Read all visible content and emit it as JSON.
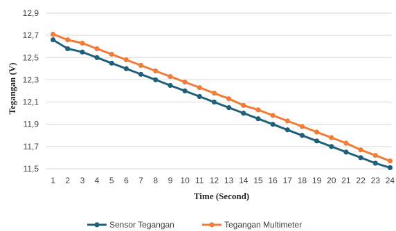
{
  "chart_data": {
    "type": "line",
    "xlabel": "Time (Second)",
    "ylabel": "Tegangan (V)",
    "ylim": [
      11.5,
      12.9
    ],
    "yticks": [
      "11,5",
      "11,7",
      "11,9",
      "12,1",
      "12,3",
      "12,5",
      "12,7",
      "12,9"
    ],
    "x": [
      1,
      2,
      3,
      4,
      5,
      6,
      7,
      8,
      9,
      10,
      11,
      12,
      13,
      14,
      15,
      16,
      17,
      18,
      19,
      20,
      21,
      22,
      23,
      24
    ],
    "grid": "horizontal",
    "legend_position": "bottom",
    "series": [
      {
        "name": "Sensor Tegangan",
        "color": "#1f5f7a",
        "values": [
          12.66,
          12.58,
          12.55,
          12.5,
          12.45,
          12.4,
          12.35,
          12.3,
          12.25,
          12.2,
          12.15,
          12.1,
          12.05,
          12.0,
          11.95,
          11.9,
          11.85,
          11.8,
          11.75,
          11.7,
          11.65,
          11.6,
          11.55,
          11.51
        ]
      },
      {
        "name": "Tegangan Multimeter",
        "color": "#f07c37",
        "values": [
          12.71,
          12.66,
          12.63,
          12.58,
          12.53,
          12.48,
          12.43,
          12.38,
          12.33,
          12.28,
          12.23,
          12.18,
          12.13,
          12.07,
          12.03,
          11.98,
          11.93,
          11.88,
          11.83,
          11.78,
          11.73,
          11.67,
          11.62,
          11.57
        ]
      }
    ]
  }
}
